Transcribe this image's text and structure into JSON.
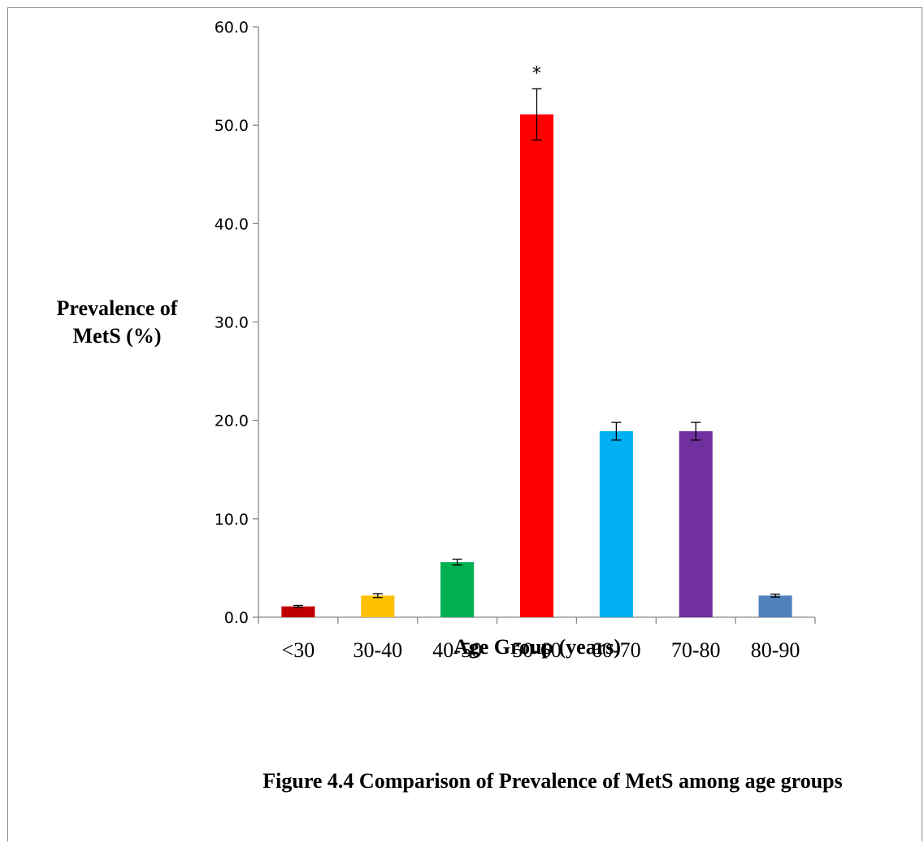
{
  "chart_data": {
    "type": "bar",
    "categories": [
      "<30",
      "30-40",
      "40-50",
      "50-60",
      "60-70",
      "70-80",
      "80-90"
    ],
    "values": [
      1.1,
      2.2,
      5.6,
      51.1,
      18.9,
      18.9,
      2.2
    ],
    "errors": [
      0.1,
      0.2,
      0.3,
      2.6,
      0.9,
      0.9,
      0.15
    ],
    "colors": [
      "#c00000",
      "#ffc000",
      "#00b050",
      "#ff0000",
      "#00b0f0",
      "#7030a0",
      "#4f81bd"
    ],
    "annotations": [
      {
        "category": "50-60",
        "text": "*"
      }
    ],
    "xlabel": "Age Group (years)",
    "ylabel_line1": "Prevalence of",
    "ylabel_line2": "MetS (%)",
    "ylim": [
      0,
      60
    ],
    "yticks": [
      "0.0",
      "10.0",
      "20.0",
      "30.0",
      "40.0",
      "50.0",
      "60.0"
    ],
    "grid": false,
    "legend": "none"
  },
  "caption": "Figure 4.4 Comparison of Prevalence of MetS among age groups"
}
